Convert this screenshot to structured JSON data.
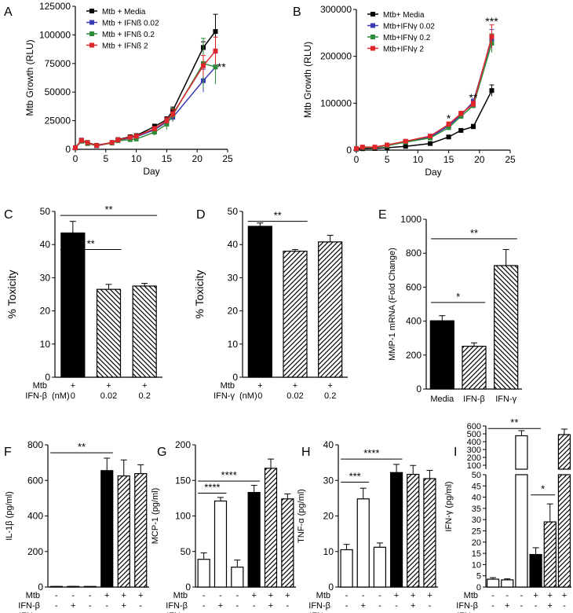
{
  "colors": {
    "black": "#000000",
    "blue": "#3a3ab4",
    "green": "#2e8b3a",
    "red": "#e0262b",
    "white": "#ffffff"
  },
  "chart_data": [
    {
      "id": "A",
      "type": "line",
      "panel_label": "A",
      "xlabel": "Day",
      "ylabel": "Mtb Growth (RLU)",
      "xlim": [
        0,
        25
      ],
      "ylim": [
        0,
        125000
      ],
      "xticks": [
        0,
        5,
        10,
        15,
        20,
        25
      ],
      "yticks": [
        0,
        25000,
        50000,
        75000,
        100000,
        125000
      ],
      "legend": "top-left",
      "x": [
        0,
        1,
        2,
        3.5,
        6,
        7,
        9,
        10,
        13,
        15,
        16,
        21,
        23
      ],
      "series": [
        {
          "name": "Mtb + Media",
          "color": "#000000",
          "marker": "square",
          "values": [
            1500,
            8000,
            6000,
            3500,
            6000,
            8500,
            11000,
            12000,
            20000,
            26000,
            34000,
            89000,
            103000
          ],
          "errors": [
            500,
            800,
            600,
            600,
            600,
            800,
            1000,
            1200,
            2000,
            2500,
            3000,
            5000,
            15000
          ]
        },
        {
          "name": "Mtb + IFNß 0.02",
          "color": "#3a3ab4",
          "marker": "square",
          "values": [
            1200,
            7500,
            5500,
            3000,
            5800,
            8000,
            10000,
            11000,
            17000,
            24000,
            28000,
            60000,
            72000
          ],
          "errors": [
            500,
            800,
            600,
            600,
            600,
            800,
            1000,
            1200,
            2000,
            3000,
            3000,
            10000,
            12000
          ]
        },
        {
          "name": "Mtb + IFNß 0.2",
          "color": "#2e8b3a",
          "marker": "square",
          "values": [
            1300,
            7000,
            5000,
            3200,
            5500,
            7500,
            8500,
            9000,
            15000,
            22000,
            30000,
            75000,
            72000
          ],
          "errors": [
            500,
            800,
            600,
            600,
            600,
            800,
            1000,
            1200,
            3000,
            5000,
            6000,
            22000,
            15000
          ]
        },
        {
          "name": "Mtb + IFNß 2",
          "color": "#e0262b",
          "marker": "square",
          "values": [
            1400,
            7800,
            5800,
            3300,
            5900,
            8200,
            10500,
            11500,
            18000,
            25000,
            31000,
            73000,
            86000
          ],
          "errors": [
            500,
            800,
            600,
            600,
            600,
            800,
            1000,
            1200,
            2000,
            3000,
            4000,
            9000,
            12000
          ]
        }
      ],
      "annotations": [
        {
          "text": "**",
          "x": 23.3,
          "y": 72000
        }
      ]
    },
    {
      "id": "B",
      "type": "line",
      "panel_label": "B",
      "xlabel": "Day",
      "ylabel": "Mtb Growth (RLU)",
      "xlim": [
        0,
        25
      ],
      "ylim": [
        0,
        300000
      ],
      "xticks": [
        0,
        5,
        10,
        15,
        20,
        25
      ],
      "yticks": [
        0,
        100000,
        200000,
        300000
      ],
      "legend": "top-left",
      "x": [
        0,
        1,
        3,
        5,
        8,
        12,
        15,
        17,
        19,
        22
      ],
      "series": [
        {
          "name": "Mtb+ Media",
          "color": "#000000",
          "marker": "square",
          "values": [
            2000,
            3000,
            3500,
            5000,
            8000,
            14000,
            28000,
            42000,
            50000,
            127000
          ],
          "errors": [
            500,
            600,
            600,
            800,
            1000,
            2000,
            3000,
            4000,
            5000,
            12000
          ]
        },
        {
          "name": "Mtb+IFNγ 0.02",
          "color": "#3a3ab4",
          "marker": "square",
          "values": [
            3000,
            6000,
            6000,
            10000,
            18000,
            28000,
            52000,
            75000,
            103000,
            237000
          ],
          "errors": [
            800,
            1000,
            1000,
            1500,
            2000,
            3000,
            5000,
            5000,
            6000,
            20000
          ]
        },
        {
          "name": "Mtb+IFNγ 0.2",
          "color": "#2e8b3a",
          "marker": "square",
          "values": [
            2800,
            5500,
            5800,
            9500,
            17000,
            26000,
            48000,
            72000,
            95000,
            228000
          ],
          "errors": [
            800,
            1000,
            1000,
            1500,
            2000,
            3000,
            5000,
            5000,
            6000,
            20000
          ]
        },
        {
          "name": "Mtb+IFNγ 2",
          "color": "#e0262b",
          "marker": "square",
          "values": [
            3200,
            6500,
            6500,
            11000,
            19000,
            30000,
            55000,
            78000,
            98000,
            242000
          ],
          "errors": [
            800,
            1000,
            1000,
            1500,
            2000,
            3000,
            5000,
            5000,
            6000,
            25000
          ]
        }
      ],
      "annotations": [
        {
          "text": "*",
          "x": 15,
          "y": 68000
        },
        {
          "text": "**",
          "x": 19,
          "y": 112000
        },
        {
          "text": "***",
          "x": 22,
          "y": 275000
        }
      ]
    },
    {
      "id": "C",
      "type": "bar",
      "panel_label": "C",
      "ylabel": "% Toxicity",
      "ylim": [
        0,
        50
      ],
      "yticks": [
        0,
        10,
        20,
        30,
        40,
        50
      ],
      "values": [
        43.5,
        26.5,
        27.5
      ],
      "errors": [
        3.5,
        1.5,
        0.8
      ],
      "fills": [
        "solid",
        "hatch-back",
        "hatch-back"
      ],
      "condition_rows": [
        {
          "label": "Mtb",
          "values": [
            "+",
            "+",
            "+"
          ]
        },
        {
          "label": "IFN-β",
          "unit": "(nM)",
          "values": [
            "0",
            "0.02",
            "0.2"
          ]
        }
      ],
      "significance": [
        {
          "text": "**",
          "from": 0,
          "to": 1,
          "y": 38.5
        },
        {
          "text": "**",
          "from": 0,
          "to": 2,
          "y": 48.8
        }
      ]
    },
    {
      "id": "D",
      "type": "bar",
      "panel_label": "D",
      "ylabel": "% Toxicity",
      "ylim": [
        0,
        50
      ],
      "yticks": [
        0,
        10,
        20,
        30,
        40,
        50
      ],
      "values": [
        45.5,
        38,
        40.8
      ],
      "errors": [
        1,
        0.5,
        2
      ],
      "fills": [
        "solid",
        "hatch-fwd",
        "hatch-fwd"
      ],
      "condition_rows": [
        {
          "label": "Mtb",
          "values": [
            "+",
            "+",
            "+"
          ]
        },
        {
          "label": "IFN-γ",
          "unit": "(nM)",
          "values": [
            "0",
            "0.02",
            "0.2"
          ]
        }
      ],
      "significance": [
        {
          "text": "**",
          "from": 0,
          "to": 1,
          "y": 47
        }
      ]
    },
    {
      "id": "E",
      "type": "bar",
      "panel_label": "E",
      "ylabel": "MMP-1 mRNA (Fold Change)",
      "ylim": [
        0,
        1000
      ],
      "yticks": [
        0,
        200,
        400,
        600,
        800,
        1000
      ],
      "categories": [
        "Media",
        "IFN-β",
        "IFN-γ"
      ],
      "values": [
        402,
        252,
        727
      ],
      "errors": [
        30,
        20,
        95
      ],
      "fills": [
        "solid",
        "hatch-fwd",
        "hatch-back"
      ],
      "significance": [
        {
          "text": "*",
          "from": 0,
          "to": 1,
          "y": 510
        },
        {
          "text": "**",
          "from": 0,
          "to": 2,
          "y": 885
        }
      ]
    },
    {
      "id": "F",
      "type": "bar",
      "panel_label": "F",
      "ylabel": "IL-1β (pg/ml)",
      "ylim": [
        0,
        800
      ],
      "yticks": [
        0,
        200,
        400,
        600,
        800
      ],
      "values": [
        3,
        3,
        0,
        655,
        625,
        638
      ],
      "errors": [
        1,
        1,
        0,
        70,
        90,
        50
      ],
      "fills": [
        "open",
        "open",
        "open",
        "solid",
        "hatch-fwd",
        "hatch-fwd"
      ],
      "condition_rows": [
        {
          "label": "Mtb",
          "values": [
            "-",
            "-",
            "-",
            "+",
            "+",
            "+"
          ]
        },
        {
          "label": "IFN-β",
          "values": [
            "-",
            "+",
            "-",
            "-",
            "+",
            "-"
          ]
        },
        {
          "label": "IFN-γ",
          "values": [
            "-",
            "-",
            "+",
            "-",
            "-",
            "+"
          ]
        }
      ],
      "significance": [
        {
          "text": "**",
          "from": 0,
          "to": 3,
          "y": 755
        }
      ]
    },
    {
      "id": "G",
      "type": "bar",
      "panel_label": "G",
      "ylabel": "MCP-1 (pg/ml)",
      "ylim": [
        0,
        200
      ],
      "yticks": [
        0,
        50,
        100,
        150,
        200
      ],
      "values": [
        39,
        121,
        28,
        133,
        167,
        124
      ],
      "errors": [
        9,
        5,
        10,
        10,
        13,
        7
      ],
      "fills": [
        "open",
        "open",
        "open",
        "solid",
        "hatch-fwd",
        "hatch-fwd"
      ],
      "condition_rows": [
        {
          "label": "Mtb",
          "values": [
            "-",
            "-",
            "-",
            "+",
            "+",
            "+"
          ]
        },
        {
          "label": "IFN-β",
          "values": [
            "-",
            "+",
            "-",
            "-",
            "+",
            "-"
          ]
        },
        {
          "label": "IFN-γ",
          "values": [
            "-",
            "-",
            "+",
            "-",
            "-",
            "+"
          ]
        }
      ],
      "significance": [
        {
          "text": "****",
          "from": 0,
          "to": 1,
          "y": 132
        },
        {
          "text": "****",
          "from": 0,
          "to": 3,
          "y": 149
        }
      ]
    },
    {
      "id": "H",
      "type": "bar",
      "panel_label": "H",
      "ylabel": "TNF-α (pg/ml)",
      "ylim": [
        0,
        40
      ],
      "yticks": [
        0,
        10,
        20,
        30,
        40
      ],
      "values": [
        10.5,
        24.8,
        11.2,
        32.2,
        31.7,
        30.5
      ],
      "errors": [
        1.5,
        3,
        1.2,
        2.3,
        2.5,
        2.3
      ],
      "fills": [
        "open",
        "open",
        "open",
        "solid",
        "hatch-fwd",
        "hatch-fwd"
      ],
      "condition_rows": [
        {
          "label": "Mtb",
          "values": [
            "-",
            "-",
            "-",
            "+",
            "+",
            "+"
          ]
        },
        {
          "label": "IFN-β",
          "values": [
            "-",
            "+",
            "-",
            "-",
            "+",
            "-"
          ]
        },
        {
          "label": "IFN-γ",
          "values": [
            "-",
            "-",
            "+",
            "-",
            "-",
            "+"
          ]
        }
      ],
      "significance": [
        {
          "text": "***",
          "from": 0,
          "to": 1,
          "y": 29.5
        },
        {
          "text": "****",
          "from": 0,
          "to": 3,
          "y": 36
        }
      ]
    },
    {
      "id": "I",
      "type": "bar",
      "panel_label": "I",
      "broken_axis": true,
      "ylabel": "IFN-γ (pg/ml)",
      "lower_ylim": [
        0,
        50
      ],
      "lower_yticks": [
        0,
        5,
        10,
        15,
        20,
        25,
        30,
        35,
        40,
        45,
        50
      ],
      "upper_ylim": [
        50,
        600
      ],
      "upper_yticks": [
        100,
        200,
        300,
        400,
        500,
        600
      ],
      "values": [
        3.5,
        3.2,
        475,
        14.5,
        29,
        490
      ],
      "errors": [
        0.7,
        0.5,
        65,
        3,
        8,
        70
      ],
      "fills": [
        "open",
        "open",
        "open",
        "solid",
        "hatch-fwd",
        "hatch-fwd"
      ],
      "condition_rows": [
        {
          "label": "Mtb",
          "values": [
            "-",
            "-",
            "-",
            "+",
            "+",
            "+"
          ]
        },
        {
          "label": "IFN-β",
          "values": [
            "-",
            "+",
            "-",
            "-",
            "+",
            "-"
          ]
        },
        {
          "label": "IFN-γ",
          "values": [
            "-",
            "-",
            "+",
            "-",
            "-",
            "+"
          ]
        }
      ],
      "significance": [
        {
          "text": "**",
          "from": 0,
          "to": 3,
          "y": 568,
          "axis": "upper"
        },
        {
          "text": "*",
          "from": 3,
          "to": 4,
          "y": 41,
          "axis": "lower"
        }
      ]
    }
  ]
}
